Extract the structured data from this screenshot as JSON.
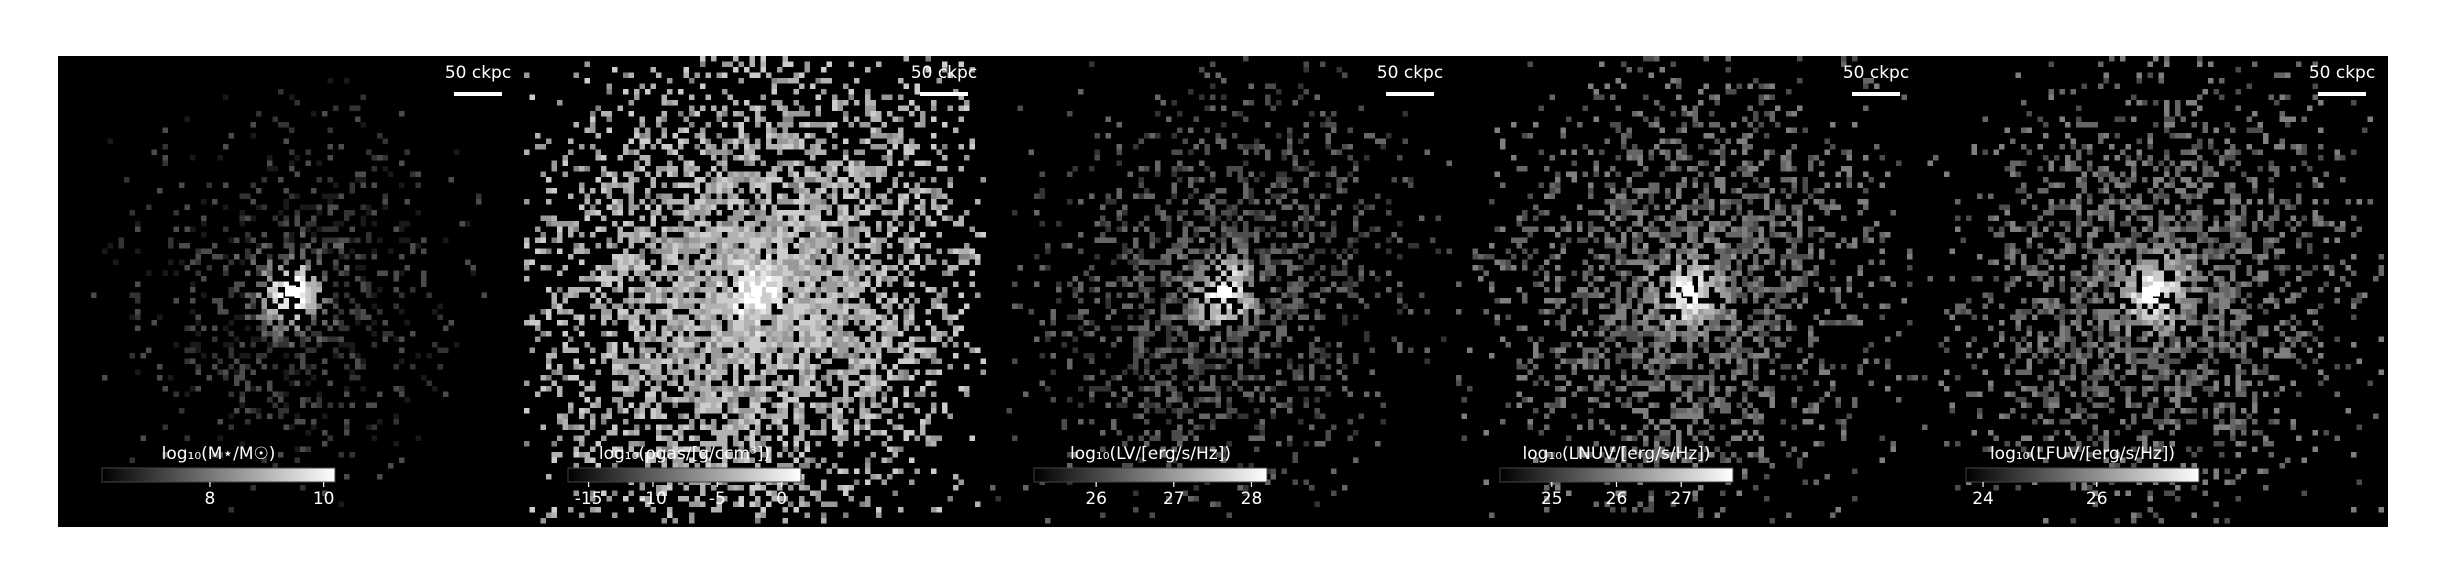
{
  "chart_data": [
    {
      "type": "image",
      "colorbar_label": "log₁₀(M⋆/M☉)",
      "clim": [
        6.1,
        10.2
      ],
      "cticks": [
        8,
        10
      ],
      "scalebar_label": "50 ckpc"
    },
    {
      "type": "image",
      "colorbar_label": "log₁₀(ρgas/[g/ccm³])",
      "clim": [
        -16.6,
        1.5
      ],
      "cticks": [
        -15,
        -10,
        -5,
        0
      ],
      "scalebar_label": "50 ckpc"
    },
    {
      "type": "image",
      "colorbar_label": "log₁₀(LV/[erg/s/Hz])",
      "clim": [
        25.2,
        28.2
      ],
      "cticks": [
        26,
        27,
        28
      ],
      "scalebar_label": "50 ckpc"
    },
    {
      "type": "image",
      "colorbar_label": "log₁₀(LNUV/[erg/s/Hz])",
      "clim": [
        24.2,
        27.8
      ],
      "cticks": [
        25,
        26,
        27
      ],
      "scalebar_label": "50 ckpc"
    },
    {
      "type": "image",
      "colorbar_label": "log₁₀(LFUV/[erg/s/Hz])",
      "clim": [
        23.7,
        27.8
      ],
      "cticks": [
        24,
        26
      ],
      "scalebar_label": "50 ckpc"
    }
  ]
}
